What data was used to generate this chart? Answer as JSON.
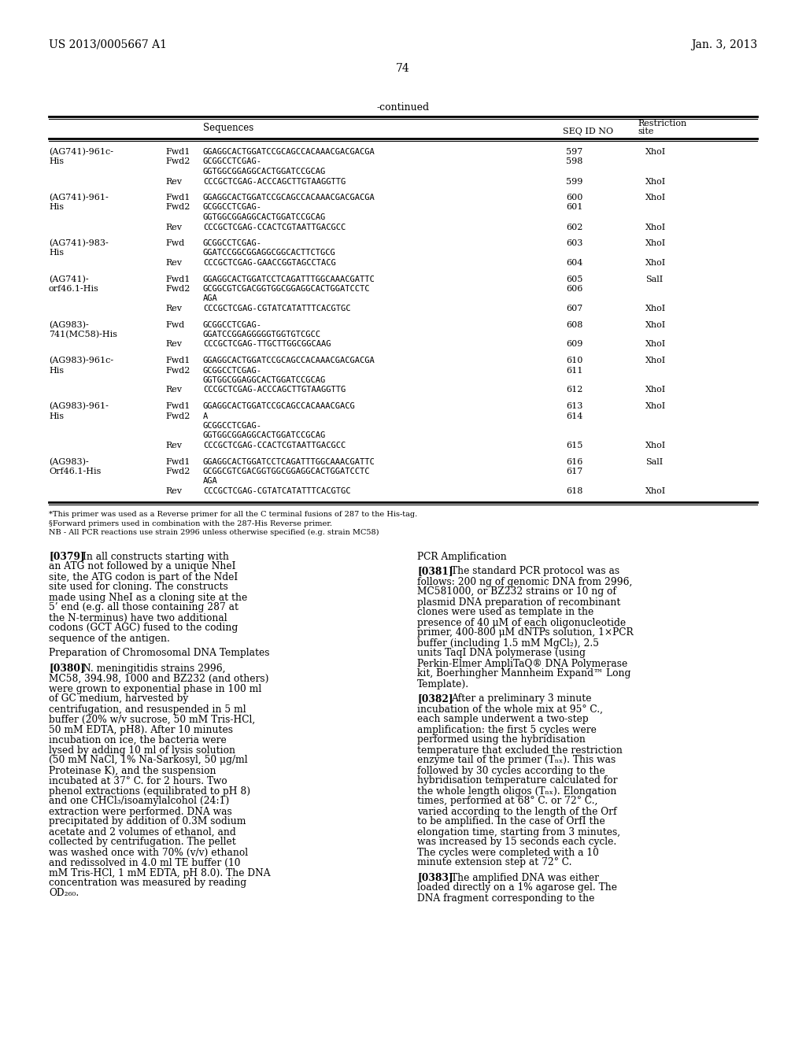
{
  "page_left": "US 2013/0005667 A1",
  "page_right": "Jan. 3, 2013",
  "page_num": "74",
  "continued": "-continued",
  "bg_color": "#ffffff",
  "table_rows": [
    {
      "label1": "(AG741)-961c-",
      "label2": "His",
      "entries": [
        {
          "dir": "Fwd1",
          "seq": "GGAGGCACTGGATCCGCAGCCACAAACGACGACGA",
          "seqid": "597",
          "rest": "XhoI"
        },
        {
          "dir": "Fwd2",
          "seq": "GCGGCCTCGAG-",
          "seqid": "598",
          "rest": ""
        },
        {
          "dir": "",
          "seq": "GGTGGCGGAGGCACTGGATCCGCAG",
          "seqid": "",
          "rest": ""
        },
        {
          "dir": "Rev",
          "seq": "CCCGCTCGAG-ACCCAGCTTGTAAGGTTG",
          "seqid": "599",
          "rest": "XhoI"
        }
      ]
    },
    {
      "label1": "(AG741)-961-",
      "label2": "His",
      "entries": [
        {
          "dir": "Fwd1",
          "seq": "GGAGGCACTGGATCCGCAGCCACAAACGACGACGA",
          "seqid": "600",
          "rest": "XhoI"
        },
        {
          "dir": "Fwd2",
          "seq": "GCGGCCTCGAG-",
          "seqid": "601",
          "rest": ""
        },
        {
          "dir": "",
          "seq": "GGTGGCGGAGGCACTGGATCCGCAG",
          "seqid": "",
          "rest": ""
        },
        {
          "dir": "Rev",
          "seq": "CCCGCTCGAG-CCACTCGTAATTGACGCC",
          "seqid": "602",
          "rest": "XhoI"
        }
      ]
    },
    {
      "label1": "(AG741)-983-",
      "label2": "His",
      "entries": [
        {
          "dir": "Fwd",
          "seq": "GCGGCCTCGAG-",
          "seqid": "603",
          "rest": "XhoI"
        },
        {
          "dir": "",
          "seq": "GGATCCGGCGGAGGCGGCACTTCTGCG",
          "seqid": "",
          "rest": ""
        },
        {
          "dir": "Rev",
          "seq": "CCCGCTCGAG-GAACCGGTAGCCTACG",
          "seqid": "604",
          "rest": "XhoI"
        }
      ]
    },
    {
      "label1": "(AG741)-",
      "label2": "orf46.1-His",
      "entries": [
        {
          "dir": "Fwd1",
          "seq": "GGAGGCACTGGATCCTCAGATTTGGCAAACGATTC",
          "seqid": "605",
          "rest": "SalI"
        },
        {
          "dir": "Fwd2",
          "seq": "GCGGCGTCGACGGTGGCGGAGGCACTGGATCCTC",
          "seqid": "606",
          "rest": ""
        },
        {
          "dir": "",
          "seq": "AGA",
          "seqid": "",
          "rest": ""
        },
        {
          "dir": "Rev",
          "seq": "CCCGCTCGAG-CGTATCATATTTCACGTGC",
          "seqid": "607",
          "rest": "XhoI"
        }
      ]
    },
    {
      "label1": "(AG983)-",
      "label2": "741(MC58)-His",
      "entries": [
        {
          "dir": "Fwd",
          "seq": "GCGGCCTCGAG-",
          "seqid": "608",
          "rest": "XhoI"
        },
        {
          "dir": "",
          "seq": "GGATCCGGAGGGGGTGGTGTCGCC",
          "seqid": "",
          "rest": ""
        },
        {
          "dir": "Rev",
          "seq": "CCCGCTCGAG-TTGCTTGGCGGCAAG",
          "seqid": "609",
          "rest": "XhoI"
        }
      ]
    },
    {
      "label1": "(AG983)-961c-",
      "label2": "His",
      "entries": [
        {
          "dir": "Fwd1",
          "seq": "GGAGGCACTGGATCCGCAGCCACAAACGACGACGA",
          "seqid": "610",
          "rest": "XhoI"
        },
        {
          "dir": "Fwd2",
          "seq": "GCGGCCTCGAG-",
          "seqid": "611",
          "rest": ""
        },
        {
          "dir": "",
          "seq": "GGTGGCGGAGGCACTGGATCCGCAG",
          "seqid": "",
          "rest": ""
        },
        {
          "dir": "Rev",
          "seq": "CCCGCTCGAG-ACCCAGCTTGTAAGGTTG",
          "seqid": "612",
          "rest": "XhoI"
        }
      ]
    },
    {
      "label1": "(AG983)-961-",
      "label2": "His",
      "entries": [
        {
          "dir": "Fwd1",
          "seq": "GGAGGCACTGGATCCGCAGCCACAAACGACG",
          "seqid": "613",
          "rest": "XhoI"
        },
        {
          "dir": "Fwd2",
          "seq": "A",
          "seqid": "614",
          "rest": ""
        },
        {
          "dir": "",
          "seq": "GCGGCCTCGAG-",
          "seqid": "",
          "rest": ""
        },
        {
          "dir": "",
          "seq": "GGTGGCGGAGGCACTGGATCCGCAG",
          "seqid": "",
          "rest": ""
        },
        {
          "dir": "Rev",
          "seq": "CCCGCTCGAG-CCACTCGTAATTGACGCC",
          "seqid": "615",
          "rest": "XhoI"
        }
      ]
    },
    {
      "label1": "(AG983)-",
      "label2": "Orf46.1-His",
      "entries": [
        {
          "dir": "Fwd1",
          "seq": "GGAGGCACTGGATCCTCAGATTTGGCAAACGATTC",
          "seqid": "616",
          "rest": "SalI"
        },
        {
          "dir": "Fwd2",
          "seq": "GCGGCGTCGACGGTGGCGGAGGCACTGGATCCTC",
          "seqid": "617",
          "rest": ""
        },
        {
          "dir": "",
          "seq": "AGA",
          "seqid": "",
          "rest": ""
        },
        {
          "dir": "Rev",
          "seq": "CCCGCTCGAG-CGTATCATATTTCACGTGC",
          "seqid": "618",
          "rest": "XhoI"
        }
      ]
    }
  ],
  "footnotes": [
    "*This primer was used as a Reverse primer for all the C terminal fusions of 287 to the His-tag.",
    "§Forward primers used in combination with the 287-His Reverse primer.",
    "NB - All PCR reactions use strain 2996 unless otherwise specified (e.g. strain MC58)"
  ],
  "para_left": [
    {
      "tag": "[0379]",
      "style": "bold",
      "body": "In all constructs starting with an ATG not followed by a unique NheI site, the ATG codon is part of the NdeI site used for cloning. The constructs made using NheI as a cloning site at the 5’ end (e.g. all those containing 287 at the N-terminus) have two additional codons (GCT AGC) fused to the coding sequence of the antigen."
    },
    {
      "tag": "Preparation of Chromosomal DNA Templates",
      "style": "header",
      "body": ""
    },
    {
      "tag": "[0380]",
      "style": "bold",
      "body": "N. meningitidis strains 2996, MC58, 394.98, 1000 and BZ232 (and others) were grown to exponential phase in 100 ml of GC medium, harvested by centrifugation, and resuspended in 5 ml buffer (20% w/v sucrose, 50 mM Tris-HCl, 50 mM EDTA, pH8). After 10 minutes incubation on ice, the bacteria were lysed by adding 10 ml of lysis solution (50 mM NaCl, 1% Na-Sarkosyl, 50 μg/ml Proteinase K), and the suspension incubated at 37° C. for 2 hours. Two phenol extractions (equilibrated to pH 8) and one CHCl₃/isoamylalcohol (24:1) extraction were performed. DNA was precipitated by addition of 0.3M sodium acetate and 2 volumes of ethanol, and collected by centrifugation. The pellet was washed once with 70% (v/v) ethanol and redissolved in 4.0 ml TE buffer (10 mM Tris-HCl, 1 mM EDTA, pH 8.0). The DNA concentration was measured by reading OD₂₆₀."
    }
  ],
  "para_right": [
    {
      "tag": "PCR Amplification",
      "style": "header",
      "body": ""
    },
    {
      "tag": "[0381]",
      "style": "bold",
      "body": "The standard PCR protocol was as follows: 200 ng of genomic DNA from 2996, MC581000, or BZ232 strains or 10 ng of plasmid DNA preparation of recombinant clones were used as template in the presence of 40 μM of each oligonucleotide primer, 400-800 μM dNTPs solution, 1×PCR buffer (including 1.5 mM MgCl₂), 2.5 units TaqI DNA polymerase (using Perkin-Elmer AmpliTaQ® DNA Polymerase kit, Boerhingher Mannheim Expand™ Long Template)."
    },
    {
      "tag": "[0382]",
      "style": "bold",
      "body": "After a preliminary 3 minute incubation of the whole mix at 95° C., each sample underwent a two-step amplification: the first 5 cycles were performed using the hybridisation temperature that excluded the restriction enzyme tail of the primer (Tₙₓ). This was followed by 30 cycles according to the hybridisation temperature calculated for the whole length oligos (Tₙₓ). Elongation times, performed at 68° C. or 72° C., varied according to the length of the Orf to be amplified. In the case of OrfI the elongation time, starting from 3 minutes, was increased by 15 seconds each cycle. The cycles were completed with a 10 minute extension step at 72° C."
    },
    {
      "tag": "[0383]",
      "style": "bold",
      "body": "The amplified DNA was either loaded directly on a 1% agarose gel. The DNA fragment corresponding to the"
    }
  ]
}
